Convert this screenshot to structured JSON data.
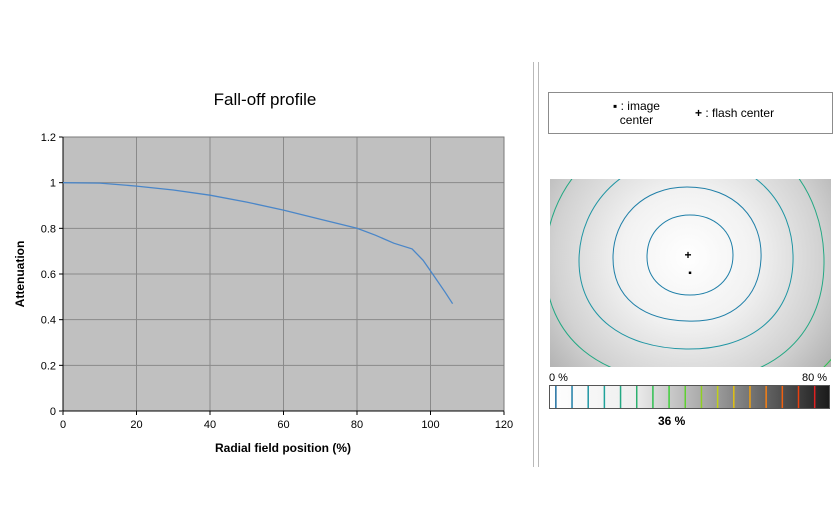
{
  "chart_data": {
    "type": "line",
    "title": "Fall-off profile",
    "xlabel": "Radial field position (%)",
    "ylabel": "Attenuation",
    "xlim": [
      0,
      120
    ],
    "ylim": [
      0,
      1.2
    ],
    "xticks": [
      "0",
      "20",
      "40",
      "60",
      "80",
      "100",
      "120"
    ],
    "yticks": [
      "0",
      "0.2",
      "0.4",
      "0.6",
      "0.8",
      "1",
      "1.2"
    ],
    "grid": true,
    "plot_background": "#c0c0c0",
    "series": [
      {
        "color": "#4a86c8",
        "x": [
          0,
          10,
          20,
          30,
          40,
          50,
          60,
          70,
          80,
          85,
          90,
          95,
          98,
          101,
          104,
          106
        ],
        "y": [
          1.0,
          0.998,
          0.985,
          0.968,
          0.945,
          0.915,
          0.88,
          0.84,
          0.8,
          0.77,
          0.735,
          0.71,
          0.66,
          0.59,
          0.52,
          0.47
        ]
      }
    ]
  },
  "legend": {
    "image_marker": "▪",
    "image_label_1": ": image",
    "image_label_2": "center",
    "flash_marker": "+",
    "flash_label": ": flash center"
  },
  "map": {
    "image_center_marker": "▪",
    "flash_center_marker": "+"
  },
  "scale": {
    "min_label": "0 %",
    "max_label": "80 %",
    "value_label": "36 %",
    "value": 0.36
  }
}
